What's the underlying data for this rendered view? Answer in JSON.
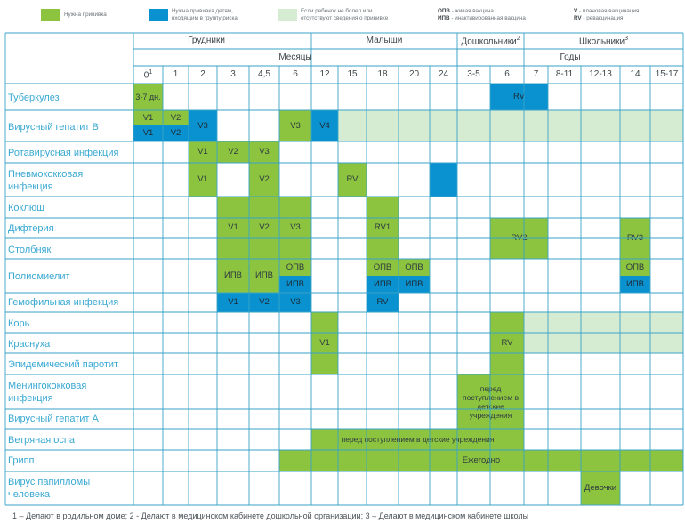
{
  "legend": {
    "green": "Нужна прививка",
    "blue_line1": "Нужна прививка детям,",
    "blue_line2": "входящим в группу риска",
    "light_line1": "Если ребенок не болел или",
    "light_line2": "отсутствуют сведения о прививке",
    "opv_abbr": "ОПВ",
    "opv_text": " - живая вакцина",
    "ipv_abbr": "ИПВ",
    "ipv_text": " - инактивированная вакцина",
    "v_abbr": "V",
    "v_text": " - плановая вакцинация",
    "rv_abbr": "RV",
    "rv_text": " - ревакцинация",
    "colors": {
      "green": "#8cc43f",
      "blue": "#0a92d0",
      "light_green": "#d6ecd2"
    }
  },
  "groups": {
    "infants": "Грудники",
    "toddlers": "Малыши",
    "preschool": "Дошкольники",
    "preschool_sup": "2",
    "school": "Школьники",
    "school_sup": "3"
  },
  "units": {
    "months": "Месяцы",
    "years": "Годы"
  },
  "columns": [
    "0",
    "1",
    "2",
    "3",
    "4,5",
    "6",
    "12",
    "15",
    "18",
    "20",
    "24",
    "3-5",
    "6",
    "7",
    "8-11",
    "12-13",
    "14",
    "15-17"
  ],
  "column0_sup": "1",
  "rows": [
    "Туберкулез",
    "Вирусный гепатит В",
    "Ротавирусная инфекция",
    "Пневмококковая инфекция",
    "Коклюш",
    "Дифтерия",
    "Столбняк",
    "Полиомиелит",
    "Гемофильная инфекция",
    "Корь",
    "Краснуха",
    "Эпидемический паротит",
    "Менингококковая инфекция",
    "Вирусный гепатит А",
    "Ветряная оспа",
    "Грипп",
    "Вирус папилломы человека"
  ],
  "cells": {
    "tb_birth": "3-7 дн.",
    "tb_rv": "RV",
    "hb_v1_green": "V1",
    "hb_v2_green": "V2",
    "hb_v1_blue": "V1",
    "hb_v2_blue": "V2",
    "hb_v3_2m": "V3",
    "hb_v3_6m": "V3",
    "hb_v4": "V4",
    "rota_v1": "V1",
    "rota_v2": "V2",
    "rota_v3": "V3",
    "pn_v1": "V1",
    "pn_v2": "V2",
    "pn_rv": "RV",
    "dtp_v1": "V1",
    "dtp_v2": "V2",
    "dtp_v3": "V3",
    "dtp_rv1": "RV1",
    "dtp_rv2": "RV2",
    "dtp_rv3": "RV3",
    "polio_ipv_3": "ИПВ",
    "polio_ipv_45": "ИПВ",
    "polio_opv_6": "ОПВ",
    "polio_ipv_6": "ИПВ",
    "polio_opv_18": "ОПВ",
    "polio_ipv_18": "ИПВ",
    "polio_opv_20": "ОПВ",
    "polio_ipv_20": "ИПВ",
    "polio_opv_14": "ОПВ",
    "polio_ipv_14": "ИПВ",
    "hib_v1": "V1",
    "hib_v2": "V2",
    "hib_v3": "V3",
    "hib_rv": "RV",
    "mmr_v1": "V1",
    "mmr_rv": "RV",
    "mening": "перед поступлением в детские учреждения",
    "varicella": "перед поступлением в детские учреждения",
    "flu": "Ежегодно",
    "hpv": "Девочки"
  },
  "footnote": "1 – Делают в родильном доме; 2 - Делают в медицинском кабинете дошкольной организации; 3 – Делают в медицинском кабинете школы"
}
